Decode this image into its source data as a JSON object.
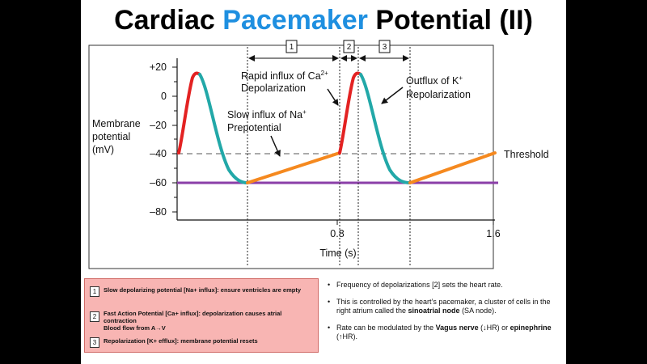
{
  "title": {
    "part1": "Cardiac ",
    "part2": "Pacemaker",
    "part3": " Potential (II)"
  },
  "colors": {
    "accent": "#1e8fe0",
    "red": "#e32222",
    "teal": "#22a8a8",
    "orange": "#f5891f",
    "purple": "#8b3fa8",
    "legend_bg": "#f8b5b3"
  },
  "axis": {
    "ylabel_lines": [
      "Membrane",
      "potential",
      "(mV)"
    ],
    "xlabel": "Time (s)",
    "y_ticks": [
      "+20",
      "0",
      "–20",
      "–40",
      "–60",
      "–80"
    ],
    "x_ticks": [
      "0.8",
      "1.6"
    ]
  },
  "annotations": {
    "threshold": "Threshold",
    "ca_line1": "Rapid influx of Ca",
    "ca_sup": "2+",
    "ca_line2": "Depolarization",
    "k_line1": "Outflux of K",
    "k_sup": "+",
    "k_line2": "Repolarization",
    "na_line1": "Slow influx of Na",
    "na_sup": "+",
    "na_line2": "Prepotential"
  },
  "phase_boxes": [
    "1",
    "2",
    "3"
  ],
  "legend": [
    {
      "num": "1",
      "text": "Slow depolarizing potential [Na+ influx]: ensure ventricles are empty"
    },
    {
      "num": "2",
      "text": "Fast Action Potential [Ca+ influx]: depolarization causes atrial contraction",
      "text2": "Blood flow from A→V"
    },
    {
      "num": "3",
      "text": "Repolarization [K+ efflux]: membrane potential resets"
    }
  ],
  "notes": {
    "n1": "Frequency of depolarizations [2] sets the heart rate.",
    "n2_a": "This is controlled by the heart’s pacemaker, a cluster of cells in the right atrium called the ",
    "n2_b": "sinoatrial node",
    "n2_c": " (SA node).",
    "n3_a": "Rate can be modulated by the ",
    "n3_b": "Vagus nerve",
    "n3_c": " (↓HR) or ",
    "n3_d": "epinephrine",
    "n3_e": " (↑HR).",
    "bullet": "•"
  }
}
